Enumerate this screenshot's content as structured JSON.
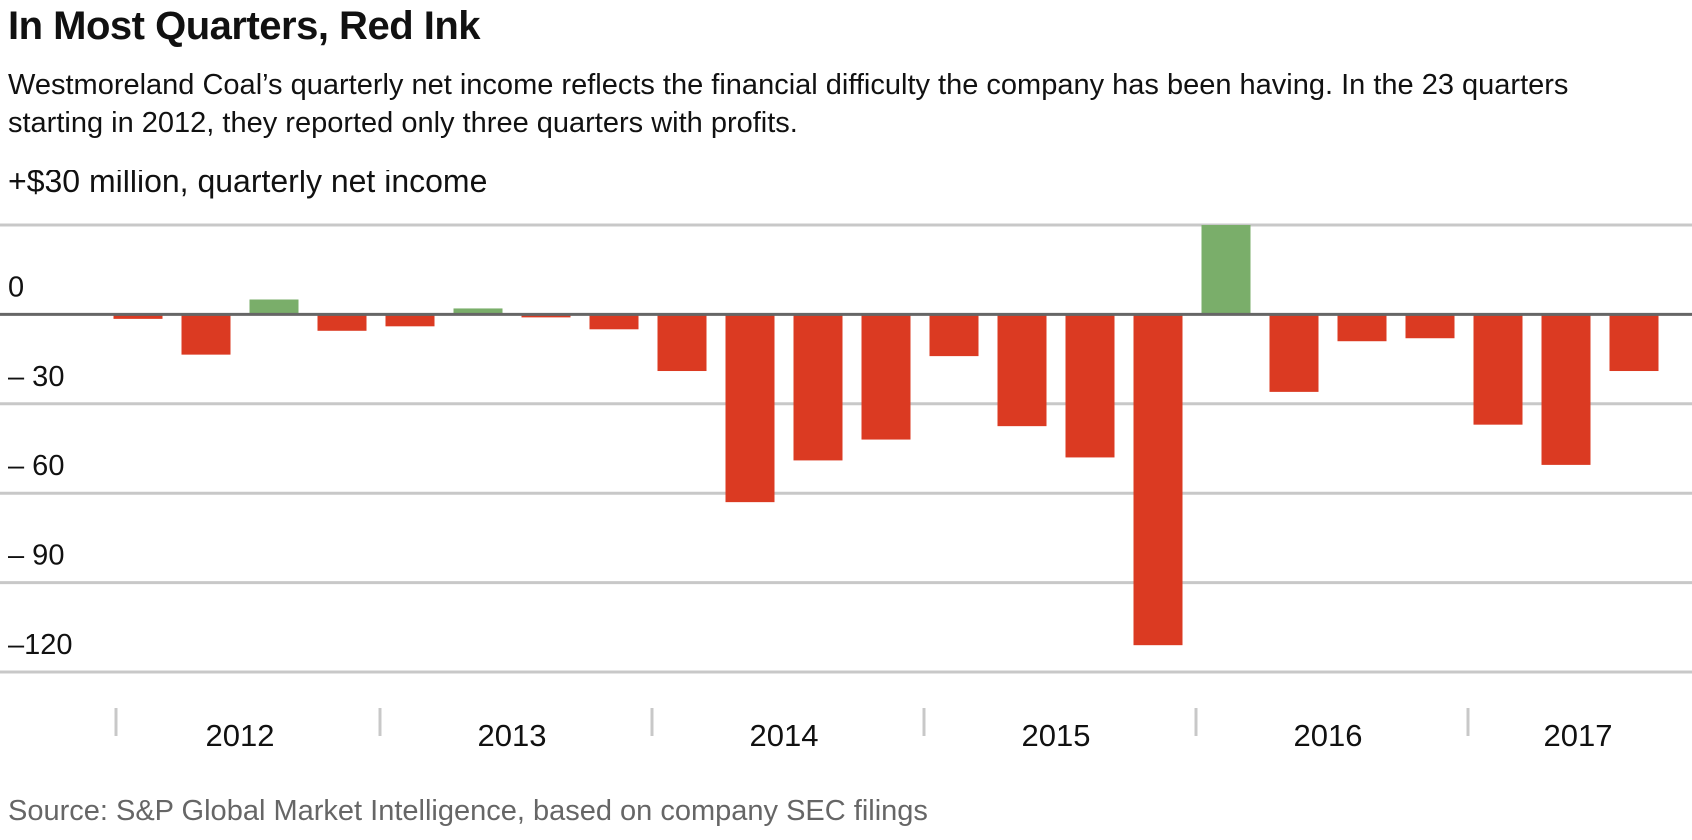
{
  "title": "In Most Quarters, Red Ink",
  "subtitle": "Westmoreland Coal’s quarterly net income reflects the financial difficulty the company has been having. In the 23 quarters starting in 2012, they reported only three quarters with profits.",
  "source": "Source: S&P Global Market Intelligence, based on company SEC filings",
  "colors": {
    "positive": "#7aae6a",
    "negative": "#db3a22",
    "grid": "#c8c8c8",
    "zero_line": "#666666",
    "text": "#111111",
    "source": "#666666"
  },
  "chart_data": {
    "type": "bar",
    "ylabel": "+$30 million, quarterly net income",
    "ylim": [
      -120,
      30
    ],
    "yticks": [
      30,
      0,
      -30,
      -60,
      -90,
      -120
    ],
    "ytick_labels": [
      "",
      "0",
      "– 30",
      "– 60",
      "– 90",
      "–120"
    ],
    "year_labels": [
      "2012",
      "2013",
      "2014",
      "2015",
      "2016",
      "2017"
    ],
    "grid": true,
    "categories": [
      "2012 Q1",
      "2012 Q2",
      "2012 Q3",
      "2012 Q4",
      "2013 Q1",
      "2013 Q2",
      "2013 Q3",
      "2013 Q4",
      "2014 Q1",
      "2014 Q2",
      "2014 Q3",
      "2014 Q4",
      "2015 Q1",
      "2015 Q2",
      "2015 Q3",
      "2015 Q4",
      "2016 Q1",
      "2016 Q2",
      "2016 Q3",
      "2016 Q4",
      "2017 Q1",
      "2017 Q2",
      "2017 Q3"
    ],
    "values": [
      -1.5,
      -13.5,
      5,
      -5.5,
      -4,
      2,
      -1,
      -5,
      -19,
      -63,
      -49,
      -42,
      -14,
      -37.5,
      -48,
      -111,
      30,
      -26,
      -9,
      -8,
      -37,
      -50.5,
      -19
    ]
  }
}
